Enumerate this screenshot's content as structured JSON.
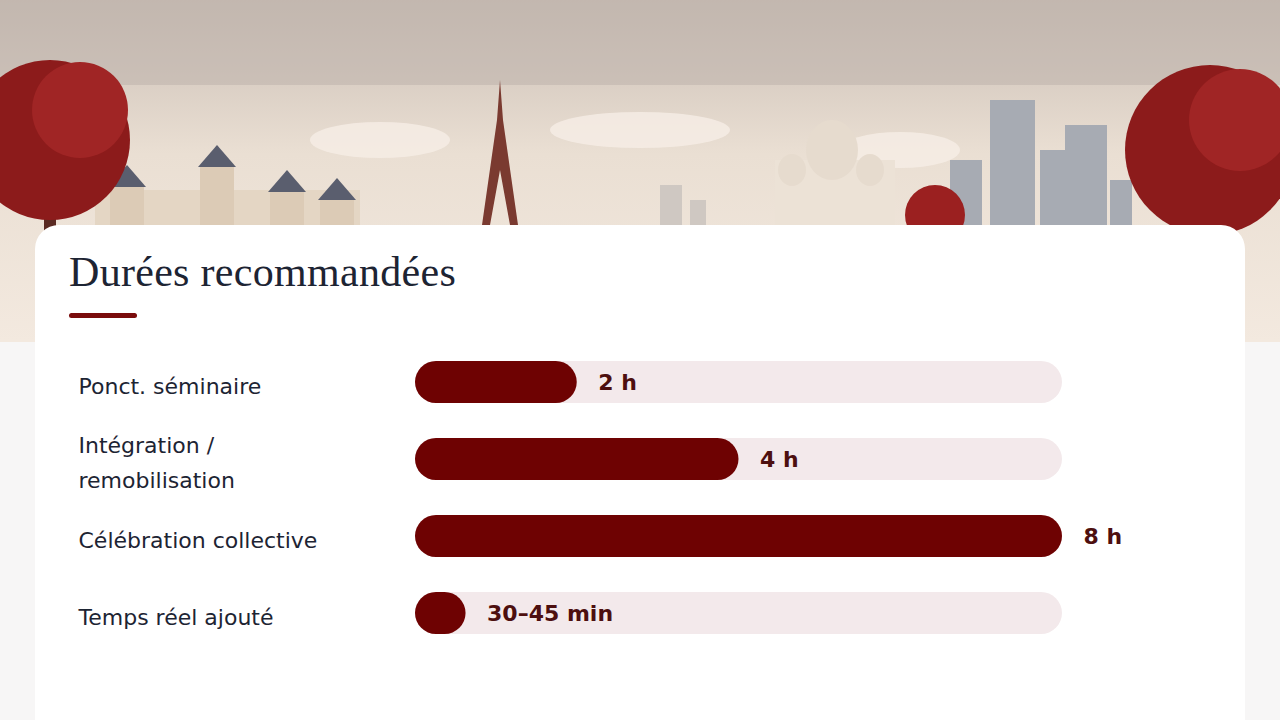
{
  "chart_data": {
    "type": "bar",
    "orientation": "horizontal",
    "title": "Durées recommandées",
    "categories": [
      "Ponct. séminaire",
      "Intégration / remobilisation",
      "Célébration collective",
      "Temps réel ajouté"
    ],
    "values": [
      2,
      4,
      8,
      0.625
    ],
    "value_labels": [
      "2 h",
      "4 h",
      "8 h",
      "30–45 min"
    ],
    "xlim": [
      0,
      8
    ],
    "data_labels": true,
    "tick_labels": "y",
    "grid": false,
    "color": "#6e0202"
  }
}
